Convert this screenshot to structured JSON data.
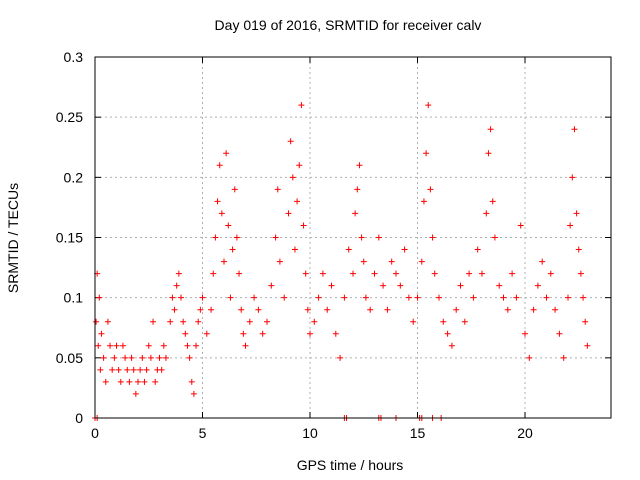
{
  "chart_data": {
    "type": "scatter",
    "title": "Day 019 of 2016, SRMTID for receiver calv",
    "xlabel": "GPS time / hours",
    "ylabel": "SRMTID / TECUs",
    "xlim": [
      0,
      24
    ],
    "ylim": [
      0,
      0.3
    ],
    "grid": true,
    "x_ticks": [
      0,
      5,
      10,
      15,
      20
    ],
    "x_tick_labels": [
      "0",
      "5",
      "10",
      "15",
      "20"
    ],
    "y_ticks": [
      0,
      0.05,
      0.1,
      0.15,
      0.2,
      0.25,
      0.3
    ],
    "y_tick_labels": [
      "0",
      "0.05",
      "0.1",
      "0.15",
      "0.2",
      "0.25",
      "0.3"
    ],
    "series": [
      {
        "name": "SRMTID",
        "marker": "+",
        "color": "#ff0000",
        "points": [
          [
            0.05,
            0.08
          ],
          [
            0.1,
            0.12
          ],
          [
            0.15,
            0.06
          ],
          [
            0.2,
            0.1
          ],
          [
            0.25,
            0.04
          ],
          [
            0.3,
            0.07
          ],
          [
            0.4,
            0.05
          ],
          [
            0.5,
            0.03
          ],
          [
            0.6,
            0.08
          ],
          [
            0.7,
            0.06
          ],
          [
            0.8,
            0.04
          ],
          [
            0.9,
            0.05
          ],
          [
            1.0,
            0.06
          ],
          [
            1.1,
            0.04
          ],
          [
            1.2,
            0.03
          ],
          [
            1.3,
            0.06
          ],
          [
            1.4,
            0.05
          ],
          [
            1.5,
            0.04
          ],
          [
            1.6,
            0.03
          ],
          [
            1.7,
            0.05
          ],
          [
            1.8,
            0.04
          ],
          [
            1.9,
            0.02
          ],
          [
            2.0,
            0.03
          ],
          [
            2.1,
            0.04
          ],
          [
            2.2,
            0.05
          ],
          [
            2.3,
            0.03
          ],
          [
            2.4,
            0.04
          ],
          [
            2.5,
            0.06
          ],
          [
            2.6,
            0.05
          ],
          [
            2.7,
            0.08
          ],
          [
            2.8,
            0.03
          ],
          [
            2.9,
            0.04
          ],
          [
            3.0,
            0.05
          ],
          [
            3.1,
            0.04
          ],
          [
            3.2,
            0.06
          ],
          [
            3.3,
            0.05
          ],
          [
            3.5,
            0.08
          ],
          [
            3.6,
            0.1
          ],
          [
            3.7,
            0.09
          ],
          [
            3.8,
            0.11
          ],
          [
            3.9,
            0.12
          ],
          [
            4.0,
            0.1
          ],
          [
            4.1,
            0.08
          ],
          [
            4.2,
            0.07
          ],
          [
            4.3,
            0.06
          ],
          [
            4.4,
            0.05
          ],
          [
            4.5,
            0.03
          ],
          [
            4.6,
            0.02
          ],
          [
            4.7,
            0.06
          ],
          [
            4.8,
            0.08
          ],
          [
            4.9,
            0.09
          ],
          [
            5.0,
            0.1
          ],
          [
            5.2,
            0.07
          ],
          [
            5.4,
            0.09
          ],
          [
            5.5,
            0.12
          ],
          [
            5.6,
            0.15
          ],
          [
            5.7,
            0.18
          ],
          [
            5.8,
            0.21
          ],
          [
            5.9,
            0.17
          ],
          [
            6.0,
            0.13
          ],
          [
            6.1,
            0.22
          ],
          [
            6.2,
            0.16
          ],
          [
            6.3,
            0.1
          ],
          [
            6.4,
            0.14
          ],
          [
            6.5,
            0.19
          ],
          [
            6.6,
            0.15
          ],
          [
            6.7,
            0.12
          ],
          [
            6.8,
            0.09
          ],
          [
            6.9,
            0.07
          ],
          [
            7.0,
            0.06
          ],
          [
            7.2,
            0.08
          ],
          [
            7.4,
            0.1
          ],
          [
            7.6,
            0.09
          ],
          [
            7.8,
            0.07
          ],
          [
            8.0,
            0.08
          ],
          [
            8.2,
            0.11
          ],
          [
            8.4,
            0.15
          ],
          [
            8.5,
            0.19
          ],
          [
            8.6,
            0.13
          ],
          [
            8.8,
            0.1
          ],
          [
            9.0,
            0.17
          ],
          [
            9.1,
            0.23
          ],
          [
            9.2,
            0.2
          ],
          [
            9.3,
            0.14
          ],
          [
            9.4,
            0.18
          ],
          [
            9.5,
            0.21
          ],
          [
            9.6,
            0.26
          ],
          [
            9.7,
            0.16
          ],
          [
            9.8,
            0.12
          ],
          [
            9.9,
            0.09
          ],
          [
            10.0,
            0.07
          ],
          [
            10.2,
            0.08
          ],
          [
            10.4,
            0.1
          ],
          [
            10.6,
            0.12
          ],
          [
            10.8,
            0.09
          ],
          [
            11.0,
            0.11
          ],
          [
            11.2,
            0.07
          ],
          [
            11.4,
            0.05
          ],
          [
            11.6,
            0.1
          ],
          [
            11.8,
            0.14
          ],
          [
            12.0,
            0.12
          ],
          [
            12.1,
            0.17
          ],
          [
            12.2,
            0.19
          ],
          [
            12.3,
            0.21
          ],
          [
            12.4,
            0.15
          ],
          [
            12.5,
            0.13
          ],
          [
            12.6,
            0.1
          ],
          [
            12.8,
            0.09
          ],
          [
            13.0,
            0.12
          ],
          [
            13.2,
            0.15
          ],
          [
            13.4,
            0.11
          ],
          [
            13.6,
            0.09
          ],
          [
            13.8,
            0.13
          ],
          [
            14.0,
            0.12
          ],
          [
            14.2,
            0.11
          ],
          [
            14.4,
            0.14
          ],
          [
            14.6,
            0.1
          ],
          [
            14.8,
            0.08
          ],
          [
            15.0,
            0.1
          ],
          [
            15.2,
            0.13
          ],
          [
            15.3,
            0.18
          ],
          [
            15.4,
            0.22
          ],
          [
            15.5,
            0.26
          ],
          [
            15.6,
            0.19
          ],
          [
            15.7,
            0.15
          ],
          [
            15.8,
            0.12
          ],
          [
            16.0,
            0.1
          ],
          [
            16.2,
            0.08
          ],
          [
            16.4,
            0.07
          ],
          [
            16.6,
            0.06
          ],
          [
            16.8,
            0.09
          ],
          [
            17.0,
            0.11
          ],
          [
            17.2,
            0.08
          ],
          [
            17.4,
            0.12
          ],
          [
            17.6,
            0.1
          ],
          [
            17.8,
            0.14
          ],
          [
            18.0,
            0.12
          ],
          [
            18.2,
            0.17
          ],
          [
            18.3,
            0.22
          ],
          [
            18.4,
            0.24
          ],
          [
            18.5,
            0.18
          ],
          [
            18.6,
            0.15
          ],
          [
            18.8,
            0.11
          ],
          [
            19.0,
            0.1
          ],
          [
            19.2,
            0.09
          ],
          [
            19.4,
            0.12
          ],
          [
            19.6,
            0.1
          ],
          [
            19.8,
            0.16
          ],
          [
            20.0,
            0.07
          ],
          [
            20.2,
            0.05
          ],
          [
            20.4,
            0.09
          ],
          [
            20.6,
            0.11
          ],
          [
            20.8,
            0.13
          ],
          [
            21.0,
            0.1
          ],
          [
            21.2,
            0.12
          ],
          [
            21.4,
            0.09
          ],
          [
            21.6,
            0.07
          ],
          [
            21.8,
            0.05
          ],
          [
            22.0,
            0.1
          ],
          [
            22.1,
            0.16
          ],
          [
            22.2,
            0.2
          ],
          [
            22.3,
            0.24
          ],
          [
            22.4,
            0.17
          ],
          [
            22.5,
            0.14
          ],
          [
            22.6,
            0.12
          ],
          [
            22.7,
            0.1
          ],
          [
            22.8,
            0.08
          ],
          [
            22.9,
            0.06
          ],
          [
            0.0,
            0.0
          ],
          [
            0.1,
            0.0
          ],
          [
            11.6,
            0.0
          ],
          [
            11.7,
            0.0
          ],
          [
            13.2,
            0.0
          ],
          [
            13.3,
            0.0
          ],
          [
            14.0,
            0.0
          ],
          [
            15.1,
            0.0
          ],
          [
            15.2,
            0.0
          ],
          [
            15.7,
            0.0
          ],
          [
            16.1,
            0.0
          ]
        ]
      }
    ]
  }
}
